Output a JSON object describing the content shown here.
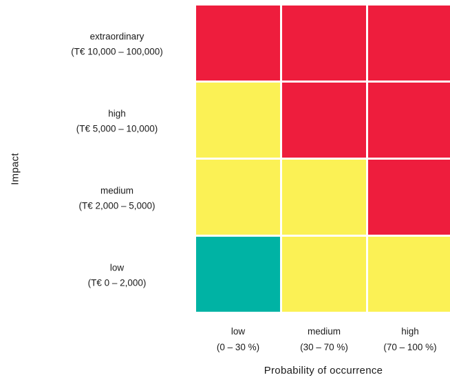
{
  "chart_data": {
    "type": "heatmap",
    "title": "",
    "xlabel": "Probability of occurrence",
    "ylabel": "Impact",
    "x_categories": [
      {
        "name": "low",
        "range": "(0 – 30 %)"
      },
      {
        "name": "medium",
        "range": "(30 – 70 %)"
      },
      {
        "name": "high",
        "range": "(70 – 100 %)"
      }
    ],
    "y_categories": [
      {
        "name": "extraordinary",
        "range": "(T€ 10,000 – 100,000)"
      },
      {
        "name": "high",
        "range": "(T€ 5,000 – 10,000)"
      },
      {
        "name": "medium",
        "range": "(T€ 2,000 – 5,000)"
      },
      {
        "name": "low",
        "range": "(T€ 0 – 2,000)"
      }
    ],
    "risk_levels": [
      "red",
      "red",
      "red",
      "yellow",
      "red",
      "red",
      "yellow",
      "yellow",
      "red",
      "green",
      "yellow",
      "yellow"
    ],
    "colors": {
      "red": "#ee1d3d",
      "yellow": "#fbf155",
      "green": "#00b3a4"
    }
  }
}
